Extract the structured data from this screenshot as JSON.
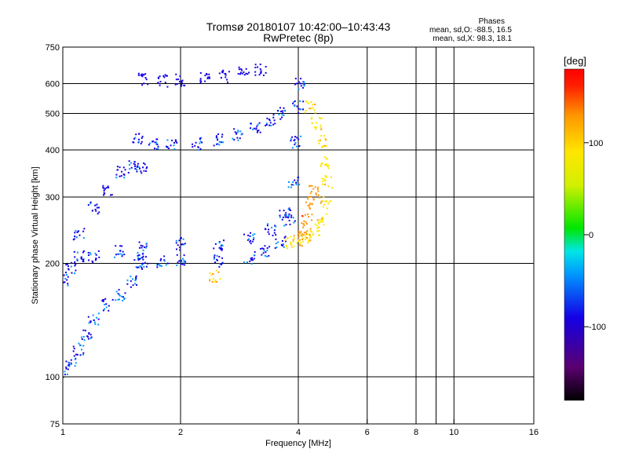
{
  "header": {
    "title": "Tromsø 20180107 10:42:00–10:43:43",
    "subtitle": "RwPretec (8p)",
    "phases_heading": "Phases",
    "phases_o": "mean, sd,O: -88.5, 16.5",
    "phases_x": "mean, sd,X:  98.3, 18.1"
  },
  "chart_data": {
    "type": "scatter",
    "title": "Tromsø 20180107 10:42:00–10:43:43",
    "subtitle": "RwPretec (8p)",
    "xlabel": "Frequency [MHz]",
    "ylabel": "Stationary phase Virtual Height [km]",
    "xscale": "log",
    "yscale": "log",
    "xlim": [
      1,
      16
    ],
    "ylim": [
      75,
      750
    ],
    "xticks": [
      1,
      2,
      4,
      6,
      8,
      10,
      16
    ],
    "xtick_labels": [
      "1",
      "2",
      "4",
      "6",
      "8",
      "10",
      "16"
    ],
    "xgrid": [
      2,
      4,
      6,
      8,
      9,
      10
    ],
    "yticks": [
      75,
      100,
      200,
      300,
      400,
      500,
      600,
      750
    ],
    "ytick_labels": [
      "75",
      "100",
      "200",
      "300",
      "400",
      "500",
      "600",
      "750"
    ],
    "ygrid": [
      100,
      200,
      300,
      400,
      500,
      600
    ],
    "grid": true,
    "colorbar": {
      "label": "[deg]",
      "range": [
        -180,
        180
      ],
      "ticks": [
        100,
        0,
        -100
      ],
      "tick_labels": [
        "100",
        "0",
        "-100"
      ],
      "colors": [
        "#000000",
        "#5a0070",
        "#1400e6",
        "#0096ff",
        "#00e6e6",
        "#00e600",
        "#d2f000",
        "#ffe600",
        "#ff9600",
        "#ff1e00",
        "#ff0000"
      ]
    },
    "series": [
      {
        "phase": -95,
        "points": [
          [
            1.0,
            103
          ],
          [
            1.05,
            108
          ],
          [
            1.1,
            118
          ],
          [
            1.15,
            130
          ],
          [
            1.2,
            142
          ],
          [
            1.3,
            155
          ],
          [
            1.4,
            165
          ],
          [
            1.5,
            178
          ],
          [
            1.55,
            200
          ],
          [
            1.6,
            203
          ],
          [
            1.8,
            203
          ],
          [
            2.0,
            203
          ],
          [
            2.5,
            203
          ],
          [
            3.0,
            207
          ],
          [
            3.3,
            215
          ],
          [
            3.6,
            228
          ],
          [
            3.8,
            260
          ],
          [
            3.9,
            330
          ],
          [
            3.95,
            420
          ],
          [
            4.0,
            520
          ],
          [
            4.05,
            600
          ]
        ]
      },
      {
        "phase": -100,
        "points": [
          [
            1.0,
            180
          ],
          [
            1.05,
            195
          ],
          [
            1.1,
            208
          ],
          [
            1.2,
            209
          ],
          [
            1.4,
            215
          ],
          [
            1.6,
            220
          ],
          [
            2.0,
            225
          ],
          [
            2.5,
            225
          ],
          [
            3.0,
            232
          ],
          [
            3.4,
            245
          ],
          [
            3.7,
            270
          ]
        ]
      },
      {
        "phase": -105,
        "points": [
          [
            1.1,
            240
          ],
          [
            1.2,
            280
          ],
          [
            1.3,
            310
          ],
          [
            1.4,
            350
          ],
          [
            1.5,
            360
          ],
          [
            1.6,
            360
          ]
        ]
      },
      {
        "phase": -100,
        "points": [
          [
            1.55,
            430
          ],
          [
            1.7,
            415
          ],
          [
            1.9,
            410
          ],
          [
            2.2,
            415
          ],
          [
            2.5,
            425
          ],
          [
            2.8,
            440
          ],
          [
            3.1,
            460
          ],
          [
            3.4,
            480
          ],
          [
            3.6,
            500
          ]
        ]
      },
      {
        "phase": -110,
        "points": [
          [
            1.6,
            615
          ],
          [
            1.8,
            610
          ],
          [
            2.0,
            612
          ],
          [
            2.3,
            618
          ],
          [
            2.6,
            628
          ],
          [
            2.9,
            640
          ],
          [
            3.2,
            650
          ]
        ]
      },
      {
        "phase": 75,
        "points": [
          [
            3.8,
            228
          ],
          [
            4.0,
            230
          ],
          [
            4.2,
            235
          ],
          [
            4.4,
            245
          ],
          [
            4.6,
            260
          ],
          [
            4.7,
            290
          ],
          [
            4.75,
            330
          ],
          [
            4.7,
            370
          ],
          [
            4.6,
            420
          ],
          [
            4.45,
            470
          ],
          [
            4.3,
            520
          ]
        ]
      },
      {
        "phase": 110,
        "points": [
          [
            4.1,
            240
          ],
          [
            4.2,
            260
          ],
          [
            4.3,
            290
          ],
          [
            4.4,
            310
          ]
        ]
      },
      {
        "phase": 80,
        "points": [
          [
            2.45,
            185
          ]
        ]
      }
    ]
  }
}
